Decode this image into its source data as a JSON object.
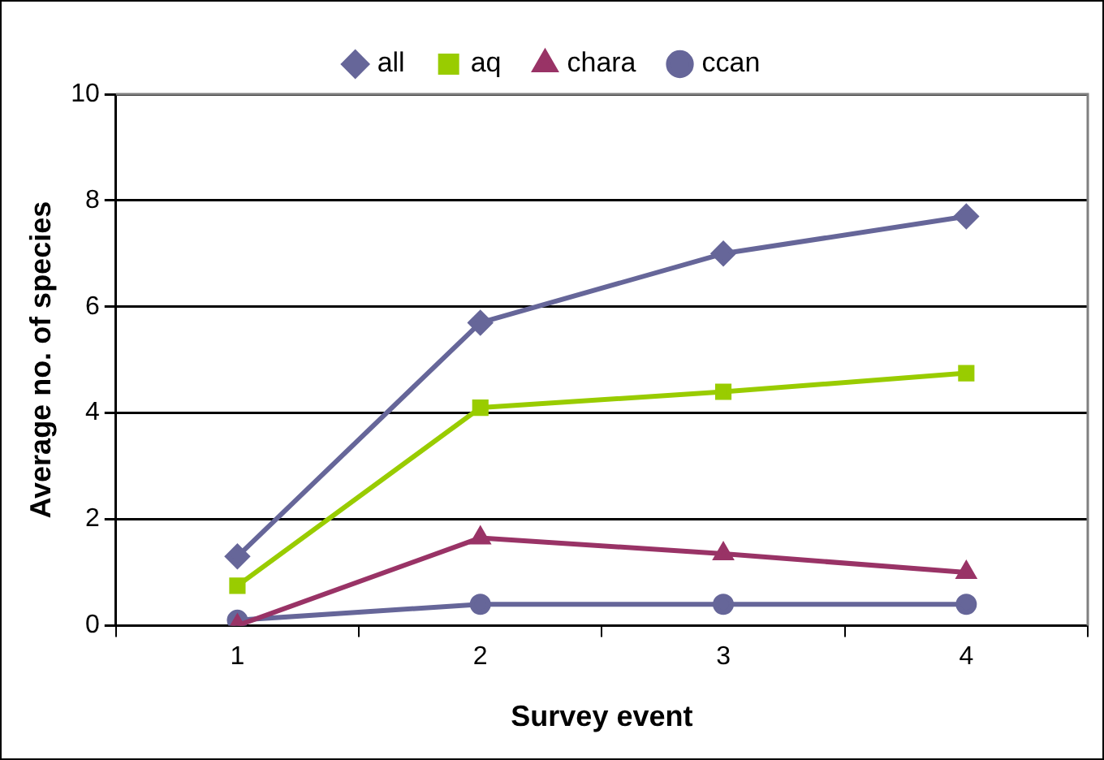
{
  "chart_data": {
    "type": "line",
    "xlabel": "Survey event",
    "ylabel": "Average no. of species",
    "categories": [
      "1",
      "2",
      "3",
      "4"
    ],
    "series": [
      {
        "name": "all",
        "color": "#666699",
        "marker": "diamond",
        "values": [
          1.3,
          5.7,
          7.0,
          7.7
        ]
      },
      {
        "name": "aq",
        "color": "#99cc00",
        "marker": "square",
        "values": [
          0.75,
          4.1,
          4.4,
          4.75
        ]
      },
      {
        "name": "chara",
        "color": "#993366",
        "marker": "triangle",
        "values": [
          0,
          1.65,
          1.35,
          1.0
        ]
      },
      {
        "name": "ccan",
        "color": "#666699",
        "marker": "circle",
        "values": [
          0.1,
          0.4,
          0.4,
          0.4
        ]
      }
    ],
    "ylim": [
      0,
      10
    ],
    "yticks": [
      0,
      2,
      4,
      6,
      8,
      10
    ],
    "grid": "y",
    "legend": "top",
    "line_style": "solid"
  }
}
